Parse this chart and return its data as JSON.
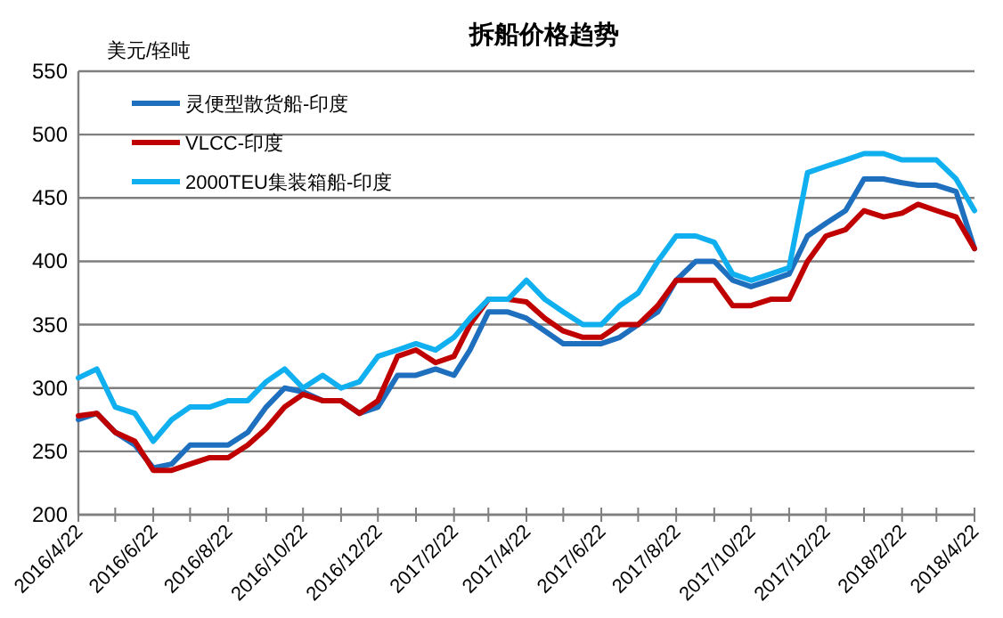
{
  "chart_data": {
    "type": "line",
    "title": "拆船价格趋势",
    "ylabel": "美元/轻吨",
    "x": [
      "2016-04-22",
      "2016-05-07",
      "2016-05-22",
      "2016-06-07",
      "2016-06-22",
      "2016-07-07",
      "2016-07-22",
      "2016-08-07",
      "2016-08-22",
      "2016-09-07",
      "2016-09-22",
      "2016-10-07",
      "2016-10-22",
      "2016-11-07",
      "2016-11-22",
      "2016-12-07",
      "2016-12-22",
      "2017-01-07",
      "2017-01-22",
      "2017-02-07",
      "2017-02-22",
      "2017-03-07",
      "2017-03-22",
      "2017-04-07",
      "2017-04-22",
      "2017-05-07",
      "2017-05-22",
      "2017-06-07",
      "2017-06-22",
      "2017-07-07",
      "2017-07-22",
      "2017-08-07",
      "2017-08-22",
      "2017-09-07",
      "2017-09-22",
      "2017-10-07",
      "2017-10-22",
      "2017-11-07",
      "2017-11-22",
      "2017-12-07",
      "2017-12-22",
      "2018-01-07",
      "2018-01-22",
      "2018-02-07",
      "2018-02-22",
      "2018-03-07",
      "2018-03-22",
      "2018-04-07",
      "2018-04-22"
    ],
    "series": [
      {
        "name": "灵便型散货船-印度",
        "color": "#1f6fbf",
        "values": [
          275,
          280,
          265,
          255,
          237,
          240,
          255,
          255,
          255,
          265,
          285,
          300,
          297,
          290,
          290,
          280,
          285,
          310,
          310,
          315,
          310,
          330,
          360,
          360,
          355,
          345,
          335,
          335,
          335,
          340,
          350,
          360,
          385,
          400,
          400,
          385,
          380,
          385,
          390,
          420,
          430,
          440,
          465,
          465,
          462,
          460,
          460,
          455,
          410
        ]
      },
      {
        "name": "VLCC-印度",
        "color": "#c00000",
        "values": [
          278,
          280,
          265,
          258,
          235,
          235,
          240,
          245,
          245,
          255,
          268,
          285,
          295,
          290,
          290,
          280,
          290,
          325,
          330,
          320,
          325,
          350,
          370,
          370,
          368,
          355,
          345,
          340,
          340,
          350,
          350,
          365,
          385,
          385,
          385,
          365,
          365,
          370,
          370,
          400,
          420,
          425,
          440,
          435,
          438,
          445,
          440,
          435,
          410
        ]
      },
      {
        "name": "2000TEU集装箱船-印度",
        "color": "#10b0f0",
        "values": [
          308,
          315,
          285,
          280,
          258,
          275,
          285,
          285,
          290,
          290,
          305,
          315,
          300,
          310,
          300,
          305,
          325,
          330,
          335,
          330,
          340,
          355,
          370,
          370,
          385,
          370,
          360,
          350,
          350,
          365,
          375,
          400,
          420,
          420,
          415,
          390,
          385,
          390,
          395,
          470,
          475,
          480,
          485,
          485,
          480,
          480,
          480,
          465,
          440
        ]
      }
    ],
    "xlim": [
      "2016-04-22",
      "2018-04-22"
    ],
    "xticks": [
      {
        "value": "2016-04-22",
        "label": "2016/4/22"
      },
      {
        "value": "2016-05-22",
        "label": null
      },
      {
        "value": "2016-06-22",
        "label": "2016/6/22"
      },
      {
        "value": "2016-07-22",
        "label": null
      },
      {
        "value": "2016-08-22",
        "label": "2016/8/22"
      },
      {
        "value": "2016-09-22",
        "label": null
      },
      {
        "value": "2016-10-22",
        "label": "2016/10/22"
      },
      {
        "value": "2016-11-22",
        "label": null
      },
      {
        "value": "2016-12-22",
        "label": "2016/12/22"
      },
      {
        "value": "2017-01-22",
        "label": null
      },
      {
        "value": "2017-02-22",
        "label": "2017/2/22"
      },
      {
        "value": "2017-03-22",
        "label": null
      },
      {
        "value": "2017-04-22",
        "label": "2017/4/22"
      },
      {
        "value": "2017-05-22",
        "label": null
      },
      {
        "value": "2017-06-22",
        "label": "2017/6/22"
      },
      {
        "value": "2017-07-22",
        "label": null
      },
      {
        "value": "2017-08-22",
        "label": "2017/8/22"
      },
      {
        "value": "2017-09-22",
        "label": null
      },
      {
        "value": "2017-10-22",
        "label": "2017/10/22"
      },
      {
        "value": "2017-11-22",
        "label": null
      },
      {
        "value": "2017-12-22",
        "label": "2017/12/22"
      },
      {
        "value": "2018-01-22",
        "label": null
      },
      {
        "value": "2018-02-22",
        "label": "2018/2/22"
      },
      {
        "value": "2018-03-22",
        "label": null
      },
      {
        "value": "2018-04-22",
        "label": "2018/4/22"
      }
    ],
    "ylim": [
      200,
      550
    ],
    "yticks": [
      200,
      250,
      300,
      350,
      400,
      450,
      500,
      550
    ],
    "grid": "y",
    "legend": "top left",
    "marker": "none",
    "line_style": "solid"
  }
}
